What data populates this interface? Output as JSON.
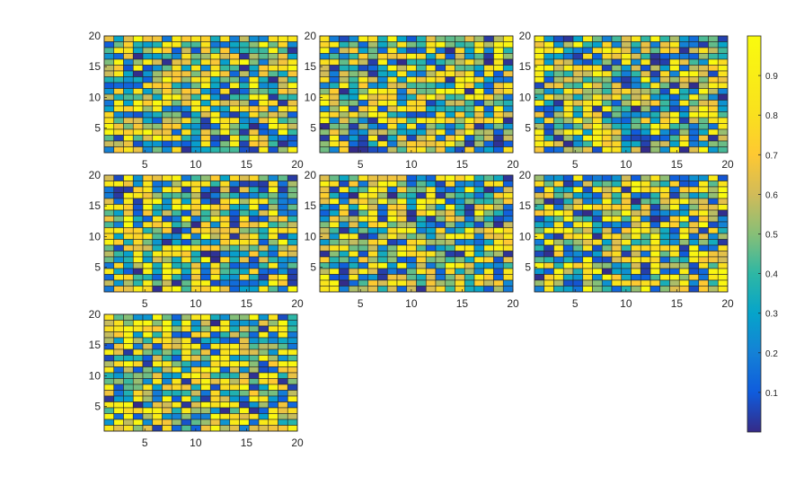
{
  "figure": {
    "colormap": "parula",
    "grid_stroke": "#262626",
    "background": "#ffffff"
  },
  "colorbar": {
    "clim": [
      0,
      1
    ],
    "ticks": [
      0.1,
      0.2,
      0.3,
      0.4,
      0.5,
      0.6,
      0.7,
      0.8,
      0.9
    ],
    "tick_labels": [
      "0.1",
      "0.2",
      "0.3",
      "0.4",
      "0.5",
      "0.6",
      "0.7",
      "0.8",
      "0.9"
    ],
    "placement": "right"
  },
  "chart_data": [
    {
      "type": "heatmap",
      "subplot": 1,
      "rows": 20,
      "cols": 20,
      "xlim": [
        1,
        20
      ],
      "ylim": [
        1,
        20
      ],
      "xticks": [
        "5",
        "10",
        "15",
        "20"
      ],
      "yticks": [
        "5",
        "10",
        "15",
        "20"
      ],
      "color_values": "uniform random in [0, 1] per cell (individual cell values not legible)"
    },
    {
      "type": "heatmap",
      "subplot": 2,
      "rows": 20,
      "cols": 20,
      "xlim": [
        1,
        20
      ],
      "ylim": [
        1,
        20
      ],
      "xticks": [
        "5",
        "10",
        "15",
        "20"
      ],
      "yticks": [
        "5",
        "10",
        "15",
        "20"
      ],
      "color_values": "uniform random in [0, 1] per cell (individual cell values not legible)"
    },
    {
      "type": "heatmap",
      "subplot": 3,
      "rows": 20,
      "cols": 20,
      "xlim": [
        1,
        20
      ],
      "ylim": [
        1,
        20
      ],
      "xticks": [
        "5",
        "10",
        "15",
        "20"
      ],
      "yticks": [
        "5",
        "10",
        "15",
        "20"
      ],
      "color_values": "uniform random in [0, 1] per cell (individual cell values not legible)"
    },
    {
      "type": "heatmap",
      "subplot": 4,
      "rows": 20,
      "cols": 20,
      "xlim": [
        1,
        20
      ],
      "ylim": [
        1,
        20
      ],
      "xticks": [
        "5",
        "10",
        "15",
        "20"
      ],
      "yticks": [
        "5",
        "10",
        "15",
        "20"
      ],
      "color_values": "uniform random in [0, 1] per cell (individual cell values not legible)"
    },
    {
      "type": "heatmap",
      "subplot": 5,
      "rows": 20,
      "cols": 20,
      "xlim": [
        1,
        20
      ],
      "ylim": [
        1,
        20
      ],
      "xticks": [
        "5",
        "10",
        "15",
        "20"
      ],
      "yticks": [
        "5",
        "10",
        "15",
        "20"
      ],
      "color_values": "uniform random in [0, 1] per cell (individual cell values not legible)"
    },
    {
      "type": "heatmap",
      "subplot": 6,
      "rows": 20,
      "cols": 20,
      "xlim": [
        1,
        20
      ],
      "ylim": [
        1,
        20
      ],
      "xticks": [
        "5",
        "10",
        "15",
        "20"
      ],
      "yticks": [
        "5",
        "10",
        "15",
        "20"
      ],
      "color_values": "uniform random in [0, 1] per cell (individual cell values not legible)"
    },
    {
      "type": "heatmap",
      "subplot": 7,
      "rows": 20,
      "cols": 20,
      "xlim": [
        1,
        20
      ],
      "ylim": [
        1,
        20
      ],
      "xticks": [
        "5",
        "10",
        "15",
        "20"
      ],
      "yticks": [
        "5",
        "10",
        "15",
        "20"
      ],
      "color_values": "uniform random in [0, 1] per cell (individual cell values not legible)"
    }
  ]
}
